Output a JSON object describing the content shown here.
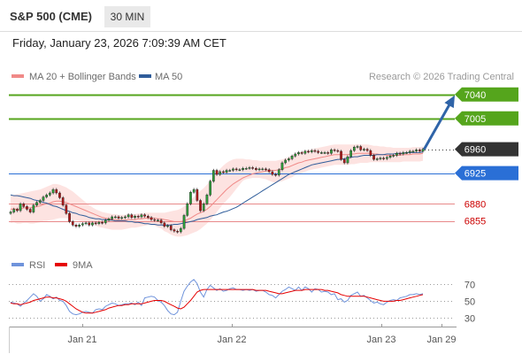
{
  "header": {
    "instrument": "S&P 500 (CME)",
    "timeframe": "30 MIN",
    "datetime": "Friday, January 23, 2026 7:09:39 AM CET",
    "credit": "Research © 2026 Trading Central"
  },
  "colors": {
    "green_level": "#55a51c",
    "blue_level": "#2a6fd6",
    "red_level": "#e8898a",
    "red_text": "#cc0000",
    "current": "#333333",
    "band_fill": "#fde3e1",
    "ma20": "#f08a88",
    "ma50": "#2f5d9a",
    "arrow": "#2f64a8",
    "rsi": "#6f93db",
    "rsi_ma": "#e60000"
  },
  "legend": {
    "ma20_label": "MA 20 + Bollinger Bands",
    "ma50_label": "MA 50",
    "rsi_label": "RSI",
    "rsi_ma_label": "9MA"
  },
  "chart_data": [
    {
      "type": "candlestick",
      "ylim": [
        6826,
        7054
      ],
      "levels": [
        {
          "value": 7040,
          "label": "7040",
          "kind": "resistance"
        },
        {
          "value": 7005,
          "label": "7005",
          "kind": "resistance"
        },
        {
          "value": 6960,
          "label": "6960",
          "kind": "current"
        },
        {
          "value": 6925,
          "label": "6925",
          "kind": "pivot"
        },
        {
          "value": 6880,
          "label": "6880",
          "kind": "support"
        },
        {
          "value": 6855,
          "label": "6855",
          "kind": "support"
        }
      ],
      "target_arrow": {
        "from": 6960,
        "to": 7040
      },
      "x_tick_labels": [
        "Jan 21",
        "Jan 22",
        "Jan 23",
        "Jan 29"
      ],
      "close": [
        6868,
        6872,
        6870,
        6880,
        6876,
        6872,
        6868,
        6878,
        6882,
        6885,
        6890,
        6893,
        6896,
        6901,
        6896,
        6889,
        6878,
        6866,
        6854,
        6849,
        6847,
        6849,
        6851,
        6852,
        6849,
        6852,
        6851,
        6853,
        6852,
        6856,
        6858,
        6861,
        6861,
        6859,
        6860,
        6861,
        6864,
        6860,
        6862,
        6861,
        6864,
        6862,
        6860,
        6857,
        6856,
        6856,
        6852,
        6847,
        6848,
        6842,
        6840,
        6839,
        6844,
        6863,
        6880,
        6897,
        6901,
        6885,
        6870,
        6880,
        6893,
        6913,
        6929,
        6923,
        6927,
        6926,
        6929,
        6929,
        6931,
        6930,
        6930,
        6932,
        6932,
        6933,
        6932,
        6930,
        6931,
        6931,
        6930,
        6927,
        6923,
        6922,
        6930,
        6940,
        6944,
        6946,
        6950,
        6953,
        6955,
        6954,
        6957,
        6956,
        6958,
        6957,
        6955,
        6955,
        6955,
        6954,
        6959,
        6958,
        6957,
        6945,
        6940,
        6949,
        6958,
        6963,
        6964,
        6959,
        6960,
        6958,
        6951,
        6945,
        6946,
        6947,
        6946,
        6948,
        6950,
        6951,
        6954,
        6953,
        6955,
        6955,
        6957,
        6957,
        6959,
        6957,
        6960
      ],
      "ma20": [
        6872,
        6873,
        6872,
        6873,
        6874,
        6874,
        6874,
        6875,
        6876,
        6877,
        6879,
        6880,
        6881,
        6883,
        6884,
        6884,
        6883,
        6882,
        6880,
        6878,
        6876,
        6874,
        6872,
        6870,
        6868,
        6866,
        6864,
        6862,
        6860,
        6859,
        6858,
        6857,
        6857,
        6856,
        6856,
        6856,
        6857,
        6857,
        6857,
        6858,
        6858,
        6859,
        6859,
        6859,
        6859,
        6858,
        6858,
        6857,
        6856,
        6855,
        6854,
        6854,
        6854,
        6855,
        6857,
        6859,
        6862,
        6865,
        6867,
        6869,
        6872,
        6876,
        6881,
        6886,
        6891,
        6896,
        6901,
        6905,
        6909,
        6912,
        6915,
        6918,
        6920,
        6922,
        6924,
        6925,
        6926,
        6927,
        6928,
        6929,
        6929,
        6929,
        6930,
        6931,
        6933,
        6934,
        6936,
        6938,
        6940,
        6941,
        6943,
        6944,
        6945,
        6946,
        6947,
        6948,
        6949,
        6950,
        6951,
        6952,
        6952,
        6952,
        6952,
        6952,
        6953,
        6953,
        6954,
        6954,
        6954,
        6954,
        6954,
        6953,
        6953,
        6952,
        6952,
        6951,
        6951,
        6951,
        6951,
        6951,
        6952,
        6952,
        6952,
        6953,
        6953,
        6953,
        6954
      ],
      "bb_upper": [
        6892,
        6893,
        6894,
        6895,
        6896,
        6897,
        6898,
        6899,
        6900,
        6901,
        6903,
        6905,
        6907,
        6909,
        6909,
        6908,
        6906,
        6904,
        6901,
        6898,
        6894,
        6890,
        6886,
        6882,
        6878,
        6875,
        6872,
        6870,
        6868,
        6867,
        6866,
        6865,
        6865,
        6864,
        6864,
        6864,
        6865,
        6865,
        6865,
        6866,
        6866,
        6867,
        6867,
        6867,
        6867,
        6867,
        6867,
        6867,
        6868,
        6869,
        6870,
        6871,
        6873,
        6876,
        6880,
        6885,
        6890,
        6895,
        6899,
        6903,
        6908,
        6914,
        6920,
        6926,
        6931,
        6936,
        6940,
        6943,
        6945,
        6946,
        6946,
        6946,
        6945,
        6945,
        6944,
        6944,
        6943,
        6943,
        6943,
        6943,
        6943,
        6943,
        6944,
        6945,
        6947,
        6949,
        6951,
        6953,
        6955,
        6957,
        6958,
        6959,
        6960,
        6961,
        6962,
        6963,
        6964,
        6965,
        6966,
        6967,
        6967,
        6967,
        6967,
        6967,
        6967,
        6967,
        6967,
        6967,
        6967,
        6967,
        6966,
        6965,
        6965,
        6964,
        6964,
        6963,
        6963,
        6962,
        6962,
        6962,
        6962,
        6962,
        6962,
        6963,
        6963,
        6963,
        6964
      ],
      "bb_lower": [
        6852,
        6853,
        6851,
        6851,
        6852,
        6852,
        6851,
        6851,
        6852,
        6853,
        6855,
        6855,
        6856,
        6857,
        6858,
        6859,
        6859,
        6859,
        6858,
        6857,
        6856,
        6855,
        6854,
        6853,
        6852,
        6850,
        6848,
        6846,
        6845,
        6844,
        6843,
        6842,
        6842,
        6842,
        6842,
        6843,
        6844,
        6845,
        6845,
        6846,
        6847,
        6848,
        6849,
        6849,
        6848,
        6846,
        6844,
        6840,
        6838,
        6835,
        6833,
        6832,
        6832,
        6833,
        6834,
        6836,
        6838,
        6840,
        6843,
        6847,
        6851,
        6856,
        6862,
        6868,
        6874,
        6880,
        6885,
        6890,
        6896,
        6902,
        6908,
        6914,
        6916,
        6917,
        6918,
        6918,
        6918,
        6917,
        6916,
        6914,
        6912,
        6911,
        6912,
        6913,
        6915,
        6917,
        6919,
        6922,
        6924,
        6925,
        6927,
        6929,
        6930,
        6931,
        6932,
        6933,
        6934,
        6935,
        6936,
        6937,
        6937,
        6937,
        6937,
        6937,
        6938,
        6938,
        6939,
        6940,
        6940,
        6940,
        6941,
        6941,
        6941,
        6941,
        6941,
        6941,
        6941,
        6941,
        6941,
        6941,
        6942,
        6942,
        6942,
        6942,
        6942,
        6942,
        6943
      ],
      "ma50": [
        6893,
        6892,
        6892,
        6891,
        6890,
        6889,
        6888,
        6886,
        6885,
        6884,
        6882,
        6881,
        6879,
        6877,
        6876,
        6874,
        6872,
        6870,
        6869,
        6867,
        6866,
        6864,
        6863,
        6862,
        6860,
        6859,
        6858,
        6858,
        6857,
        6857,
        6856,
        6856,
        6855,
        6855,
        6855,
        6855,
        6854,
        6854,
        6853,
        6853,
        6852,
        6851,
        6851,
        6850,
        6850,
        6849,
        6849,
        6849,
        6849,
        6849,
        6850,
        6850,
        6851,
        6852,
        6853,
        6854,
        6855,
        6857,
        6858,
        6859,
        6860,
        6862,
        6863,
        6864,
        6866,
        6868,
        6869,
        6871,
        6873,
        6875,
        6878,
        6881,
        6884,
        6887,
        6890,
        6893,
        6896,
        6899,
        6902,
        6905,
        6908,
        6911,
        6914,
        6917,
        6920,
        6923,
        6925,
        6927,
        6929,
        6931,
        6933,
        6935,
        6937,
        6938,
        6939,
        6940,
        6941,
        6942,
        6943,
        6944,
        6945,
        6945,
        6946,
        6947,
        6948,
        6949,
        6949,
        6950,
        6951,
        6951,
        6951,
        6951,
        6952,
        6952,
        6952,
        6953,
        6953,
        6953,
        6954,
        6954,
        6954,
        6955,
        6955,
        6955,
        6955,
        6955,
        6956
      ]
    },
    {
      "type": "line",
      "title": "RSI",
      "ylim": [
        20,
        80
      ],
      "y_tick_labels": [
        "70",
        "50",
        "30"
      ],
      "series": [
        {
          "name": "RSI",
          "values": [
            48,
            47,
            46,
            43,
            47,
            50,
            54,
            58,
            55,
            49,
            52,
            57,
            55,
            52,
            54,
            50,
            49,
            44,
            37,
            34,
            33,
            34,
            36,
            37,
            36,
            35,
            39,
            40,
            39,
            43,
            45,
            47,
            46,
            44,
            45,
            46,
            46,
            47,
            45,
            48,
            44,
            53,
            54,
            55,
            54,
            50,
            48,
            44,
            38,
            34,
            33,
            36,
            49,
            61,
            67,
            72,
            75,
            70,
            60,
            54,
            63,
            68,
            65,
            62,
            64,
            61,
            62,
            64,
            65,
            63,
            63,
            62,
            63,
            62,
            63,
            61,
            62,
            62,
            60,
            57,
            56,
            53,
            57,
            61,
            63,
            66,
            64,
            62,
            66,
            62,
            66,
            64,
            60,
            64,
            63,
            60,
            61,
            60,
            57,
            58,
            51,
            52,
            48,
            50,
            56,
            58,
            60,
            55,
            56,
            53,
            50,
            47,
            48,
            46,
            45,
            48,
            50,
            51,
            50,
            53,
            54,
            55,
            57,
            57,
            58,
            57,
            58
          ]
        },
        {
          "name": "9MA",
          "values": [
            47,
            46,
            46,
            45,
            46,
            47,
            48,
            50,
            51,
            52,
            53,
            54,
            54,
            53,
            53,
            52,
            51,
            49,
            46,
            43,
            40,
            38,
            36,
            35,
            35,
            35,
            36,
            37,
            38,
            39,
            41,
            42,
            43,
            44,
            44,
            45,
            45,
            46,
            46,
            46,
            46,
            47,
            48,
            49,
            50,
            50,
            50,
            49,
            47,
            45,
            43,
            41,
            40,
            42,
            46,
            50,
            55,
            60,
            62,
            63,
            63,
            63,
            63,
            63,
            63,
            63,
            63,
            63,
            63,
            63,
            63,
            63,
            63,
            63,
            63,
            62,
            62,
            62,
            62,
            61,
            60,
            59,
            58,
            58,
            59,
            60,
            61,
            62,
            62,
            62,
            63,
            63,
            63,
            63,
            63,
            63,
            62,
            62,
            61,
            60,
            59,
            57,
            56,
            55,
            55,
            55,
            55,
            55,
            55,
            54,
            53,
            52,
            51,
            50,
            49,
            49,
            49,
            49,
            50,
            50,
            51,
            52,
            53,
            54,
            55,
            56,
            57
          ]
        }
      ]
    }
  ]
}
